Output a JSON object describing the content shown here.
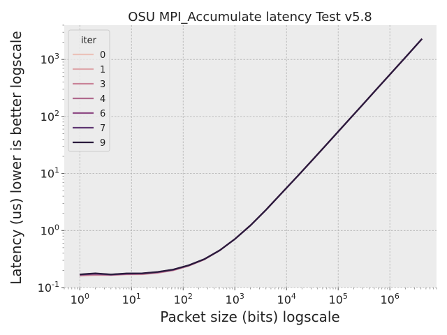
{
  "chart_data": {
    "type": "line",
    "title": "OSU MPI_Accumulate latency Test v5.8",
    "xlabel": "Packet size (bits) logscale",
    "ylabel": "Latency (us) lower is better logscale",
    "xscale": "log",
    "yscale": "log",
    "xlim": [
      0.5,
      8000000
    ],
    "ylim": [
      0.1,
      4000
    ],
    "x_tick_labels": [
      "10^0",
      "10^1",
      "10^2",
      "10^3",
      "10^4",
      "10^5",
      "10^6"
    ],
    "y_tick_labels": [
      "10^-1",
      "10^0",
      "10^1",
      "10^2",
      "10^3"
    ],
    "grid": true,
    "legend": {
      "title": "iter",
      "placement": "top-left"
    },
    "x": [
      1,
      2,
      4,
      8,
      16,
      32,
      64,
      128,
      256,
      512,
      1024,
      2048,
      4096,
      8192,
      16384,
      32768,
      65536,
      131072,
      262144,
      524288,
      1048576,
      2097152,
      4194304
    ],
    "series": [
      {
        "name": "0",
        "color": "#ebc2b9",
        "values": [
          0.16,
          0.165,
          0.165,
          0.17,
          0.17,
          0.18,
          0.2,
          0.24,
          0.31,
          0.45,
          0.72,
          1.25,
          2.35,
          4.6,
          9.0,
          17.8,
          35.5,
          71,
          142,
          285,
          570,
          1140,
          2300
        ]
      },
      {
        "name": "1",
        "color": "#dea8ac",
        "values": [
          0.162,
          0.166,
          0.166,
          0.17,
          0.171,
          0.181,
          0.2,
          0.24,
          0.31,
          0.45,
          0.72,
          1.25,
          2.35,
          4.6,
          9.0,
          17.8,
          35.5,
          71,
          142,
          285,
          570,
          1140,
          2300
        ]
      },
      {
        "name": "3",
        "color": "#c98398",
        "values": [
          0.164,
          0.168,
          0.166,
          0.171,
          0.172,
          0.182,
          0.201,
          0.241,
          0.31,
          0.45,
          0.72,
          1.25,
          2.35,
          4.6,
          9.0,
          17.8,
          35.5,
          71,
          142,
          285,
          570,
          1140,
          2300
        ]
      },
      {
        "name": "4",
        "color": "#b06a8e",
        "values": [
          0.166,
          0.17,
          0.167,
          0.172,
          0.174,
          0.184,
          0.203,
          0.242,
          0.312,
          0.45,
          0.72,
          1.25,
          2.35,
          4.6,
          9.0,
          17.8,
          35.5,
          71,
          142,
          285,
          570,
          1140,
          2300
        ]
      },
      {
        "name": "6",
        "color": "#8f4b85",
        "values": [
          0.168,
          0.174,
          0.168,
          0.174,
          0.176,
          0.186,
          0.205,
          0.244,
          0.313,
          0.45,
          0.72,
          1.25,
          2.35,
          4.6,
          9.0,
          17.8,
          35.5,
          71,
          142,
          285,
          570,
          1140,
          2300
        ]
      },
      {
        "name": "7",
        "color": "#5e3672",
        "values": [
          0.169,
          0.176,
          0.169,
          0.176,
          0.177,
          0.187,
          0.206,
          0.245,
          0.314,
          0.45,
          0.72,
          1.25,
          2.35,
          4.6,
          9.0,
          17.8,
          35.5,
          71,
          142,
          285,
          570,
          1140,
          2300
        ]
      },
      {
        "name": "9",
        "color": "#2a1b3c",
        "values": [
          0.17,
          0.178,
          0.17,
          0.177,
          0.178,
          0.188,
          0.207,
          0.246,
          0.315,
          0.45,
          0.72,
          1.25,
          2.35,
          4.6,
          9.0,
          17.8,
          35.5,
          71,
          142,
          285,
          570,
          1140,
          2300
        ]
      }
    ]
  }
}
